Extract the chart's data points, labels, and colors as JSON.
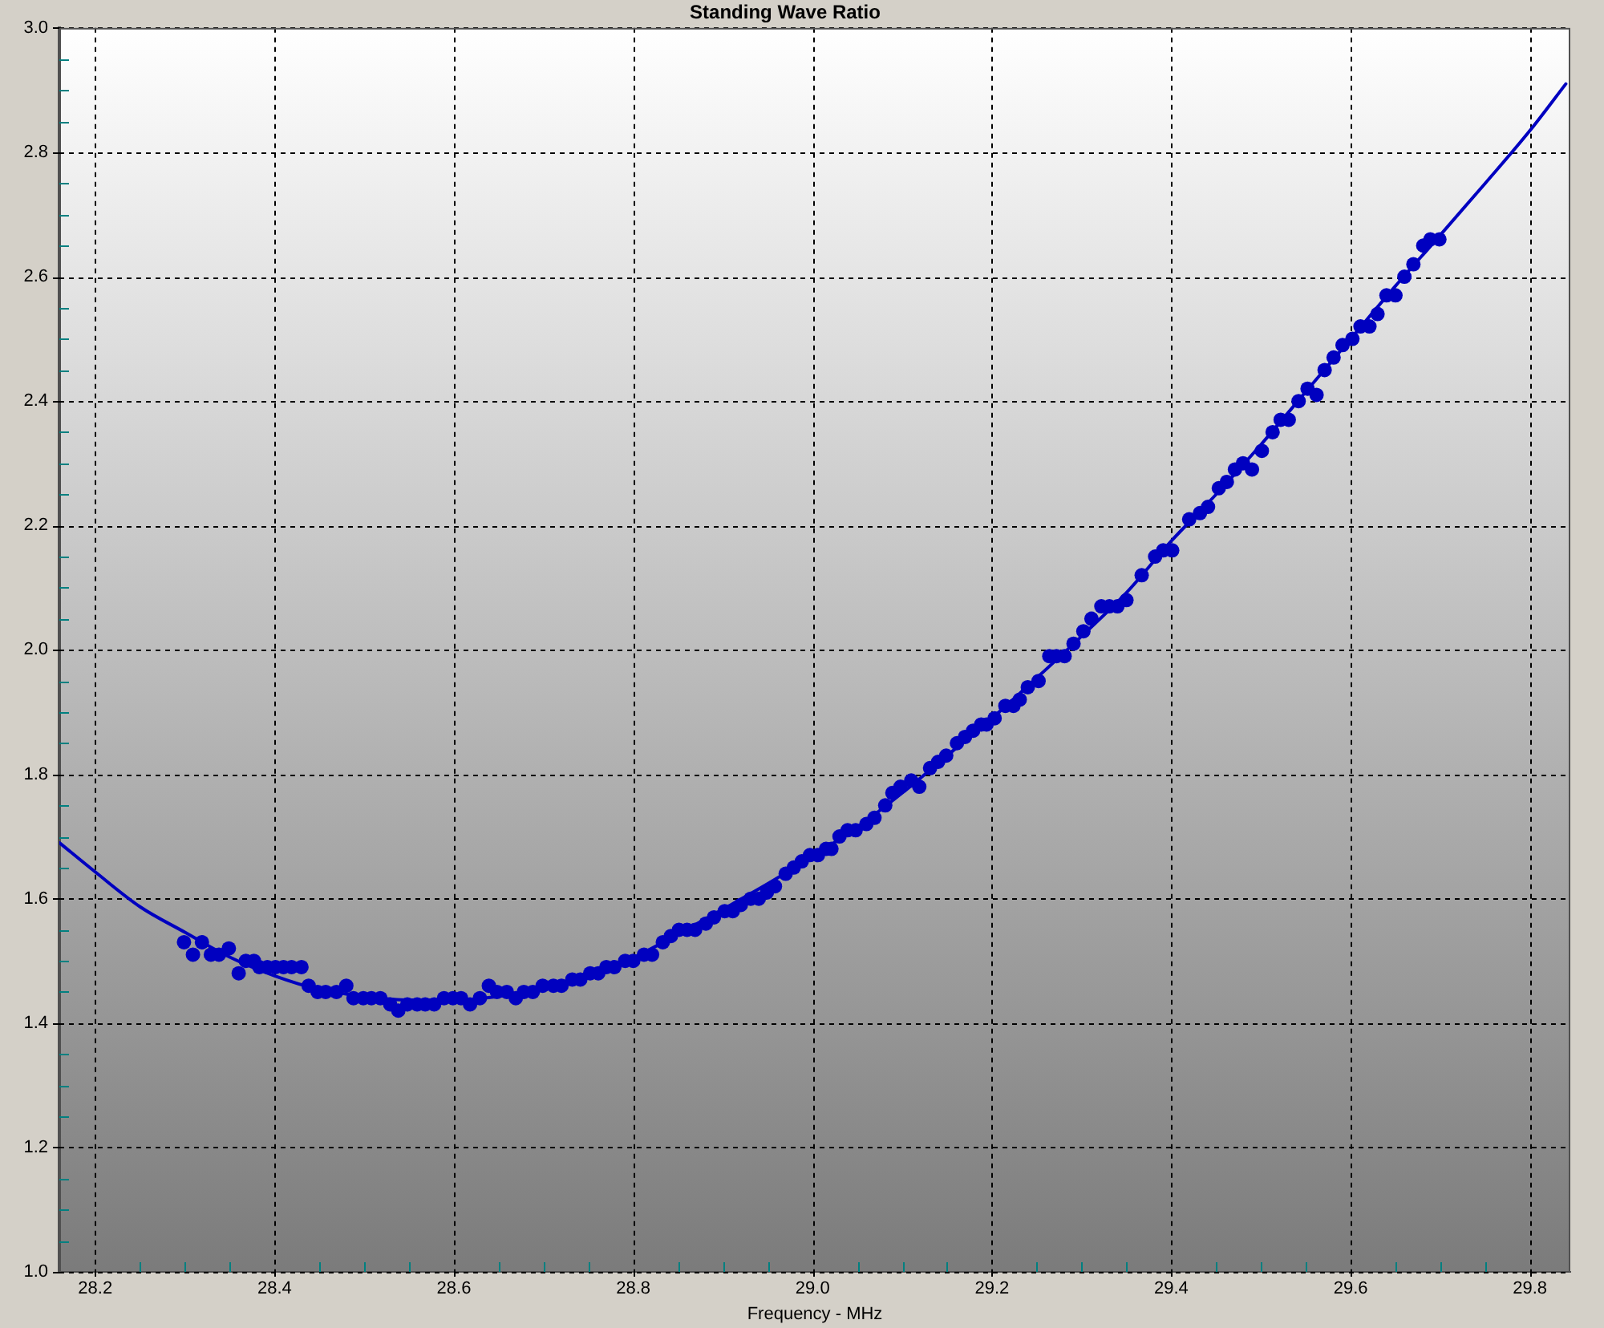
{
  "chart_data": {
    "type": "scatter",
    "title": "Standing Wave Ratio",
    "xlabel": "Frequency - MHz",
    "xlim": [
      28.16,
      29.845
    ],
    "ylim": [
      1,
      3
    ],
    "xticks": [
      28.2,
      {
        "value": 28.25,
        "label": null
      },
      {
        "value": 28.3,
        "label": null
      },
      {
        "value": 28.35,
        "label": null
      },
      28.4,
      {
        "value": 28.45,
        "label": null
      },
      {
        "value": 28.5,
        "label": null
      },
      {
        "value": 28.55,
        "label": null
      },
      28.6,
      {
        "value": 28.65,
        "label": null
      },
      {
        "value": 28.7,
        "label": null
      },
      {
        "value": 28.75,
        "label": null
      },
      28.8,
      {
        "value": 28.85,
        "label": null
      },
      {
        "value": 28.9,
        "label": null
      },
      {
        "value": 28.95,
        "label": null
      },
      {
        "value": 29,
        "label": "29.0"
      },
      {
        "value": 29.05,
        "label": null
      },
      {
        "value": 29.1,
        "label": null
      },
      {
        "value": 29.15,
        "label": null
      },
      29.2,
      {
        "value": 29.25,
        "label": null
      },
      {
        "value": 29.3,
        "label": null
      },
      {
        "value": 29.35,
        "label": null
      },
      29.4,
      {
        "value": 29.45,
        "label": null
      },
      {
        "value": 29.5,
        "label": null
      },
      {
        "value": 29.55,
        "label": null
      },
      29.6,
      {
        "value": 29.65,
        "label": null
      },
      {
        "value": 29.7,
        "label": null
      },
      {
        "value": 29.75,
        "label": null
      },
      29.8
    ],
    "yticks": [
      {
        "value": 1,
        "label": "1.0"
      },
      {
        "value": 1.05,
        "label": null
      },
      {
        "value": 1.1,
        "label": null
      },
      {
        "value": 1.15,
        "label": null
      },
      1.2,
      {
        "value": 1.25,
        "label": null
      },
      {
        "value": 1.3,
        "label": null
      },
      {
        "value": 1.35,
        "label": null
      },
      1.4,
      {
        "value": 1.45,
        "label": null
      },
      {
        "value": 1.5,
        "label": null
      },
      {
        "value": 1.55,
        "label": null
      },
      1.6,
      {
        "value": 1.65,
        "label": null
      },
      {
        "value": 1.7,
        "label": null
      },
      {
        "value": 1.75,
        "label": null
      },
      1.8,
      {
        "value": 1.85,
        "label": null
      },
      {
        "value": 1.9,
        "label": null
      },
      {
        "value": 1.95,
        "label": null
      },
      {
        "value": 2,
        "label": "2.0"
      },
      {
        "value": 2.05,
        "label": null
      },
      {
        "value": 2.1,
        "label": null
      },
      {
        "value": 2.15,
        "label": null
      },
      2.2,
      {
        "value": 2.25,
        "label": null
      },
      {
        "value": 2.3,
        "label": null
      },
      {
        "value": 2.35,
        "label": null
      },
      2.4,
      {
        "value": 2.45,
        "label": null
      },
      {
        "value": 2.5,
        "label": null
      },
      {
        "value": 2.55,
        "label": null
      },
      2.6,
      {
        "value": 2.65,
        "label": null
      },
      {
        "value": 2.7,
        "label": null
      },
      {
        "value": 2.75,
        "label": null
      },
      2.8,
      {
        "value": 2.85,
        "label": null
      },
      {
        "value": 2.9,
        "label": null
      },
      {
        "value": 2.95,
        "label": null
      },
      {
        "value": 3,
        "label": "3.0"
      }
    ],
    "grid": true,
    "series": [
      {
        "color": "#0000c0",
        "marker": "circle",
        "x": [
          28.299,
          28.309,
          28.319,
          28.329,
          28.338,
          28.349,
          28.36,
          28.368,
          28.377,
          28.383,
          28.392,
          28.401,
          28.41,
          28.419,
          28.43,
          28.438,
          28.448,
          28.457,
          28.469,
          28.48,
          28.488,
          28.499,
          28.508,
          28.518,
          28.529,
          28.538,
          28.548,
          28.559,
          28.568,
          28.578,
          28.589,
          28.599,
          28.608,
          28.618,
          28.629,
          28.639,
          28.648,
          28.659,
          28.669,
          28.678,
          28.688,
          28.699,
          28.711,
          28.72,
          28.732,
          28.741,
          28.752,
          28.761,
          28.77,
          28.779,
          28.791,
          28.8,
          28.812,
          28.821,
          28.833,
          28.842,
          28.851,
          28.86,
          28.869,
          28.881,
          28.89,
          28.902,
          28.911,
          28.92,
          28.931,
          28.94,
          28.949,
          28.958,
          28.97,
          28.979,
          28.988,
          28.997,
          29.006,
          29.015,
          29.021,
          29.03,
          29.039,
          29.048,
          29.06,
          29.069,
          29.081,
          29.089,
          29.098,
          29.11,
          29.119,
          29.131,
          29.14,
          29.149,
          29.161,
          29.17,
          29.179,
          29.188,
          29.194,
          29.203,
          29.215,
          29.224,
          29.231,
          29.24,
          29.252,
          29.264,
          29.272,
          29.281,
          29.291,
          29.302,
          29.311,
          29.322,
          29.331,
          29.34,
          29.35,
          29.367,
          29.382,
          29.391,
          29.401,
          29.42,
          29.432,
          29.441,
          29.453,
          29.462,
          29.471,
          29.48,
          29.49,
          29.501,
          29.513,
          29.522,
          29.531,
          29.542,
          29.552,
          29.562,
          29.571,
          29.581,
          29.591,
          29.602,
          29.611,
          29.621,
          29.63,
          29.64,
          29.65,
          29.66,
          29.67,
          29.681,
          29.689,
          29.699
        ],
        "values": [
          1.53,
          1.51,
          1.53,
          1.51,
          1.51,
          1.52,
          1.48,
          1.5,
          1.5,
          1.49,
          1.49,
          1.49,
          1.49,
          1.49,
          1.49,
          1.46,
          1.45,
          1.45,
          1.45,
          1.46,
          1.44,
          1.44,
          1.44,
          1.44,
          1.43,
          1.42,
          1.43,
          1.43,
          1.43,
          1.43,
          1.44,
          1.44,
          1.44,
          1.43,
          1.44,
          1.46,
          1.45,
          1.45,
          1.44,
          1.45,
          1.45,
          1.46,
          1.46,
          1.46,
          1.47,
          1.47,
          1.48,
          1.48,
          1.49,
          1.49,
          1.5,
          1.5,
          1.51,
          1.51,
          1.53,
          1.54,
          1.55,
          1.55,
          1.55,
          1.56,
          1.57,
          1.58,
          1.58,
          1.59,
          1.6,
          1.6,
          1.61,
          1.62,
          1.64,
          1.65,
          1.66,
          1.67,
          1.67,
          1.68,
          1.68,
          1.7,
          1.71,
          1.71,
          1.72,
          1.73,
          1.75,
          1.77,
          1.78,
          1.79,
          1.78,
          1.81,
          1.82,
          1.83,
          1.85,
          1.86,
          1.87,
          1.88,
          1.88,
          1.89,
          1.91,
          1.91,
          1.92,
          1.94,
          1.95,
          1.99,
          1.99,
          1.99,
          2.01,
          2.03,
          2.05,
          2.07,
          2.07,
          2.07,
          2.08,
          2.12,
          2.15,
          2.16,
          2.16,
          2.21,
          2.22,
          2.23,
          2.26,
          2.27,
          2.29,
          2.3,
          2.29,
          2.32,
          2.35,
          2.37,
          2.37,
          2.4,
          2.42,
          2.41,
          2.45,
          2.47,
          2.49,
          2.5,
          2.52,
          2.52,
          2.54,
          2.57,
          2.57,
          2.6,
          2.62,
          2.65,
          2.66,
          2.66
        ]
      },
      {
        "type": "line",
        "color": "#0000c0",
        "marker": "none",
        "x": [
          28.16,
          28.2,
          28.25,
          28.3,
          28.35,
          28.4,
          28.45,
          28.5,
          28.55,
          28.6,
          28.65,
          28.7,
          28.75,
          28.8,
          28.85,
          28.9,
          28.95,
          29,
          29.05,
          29.1,
          29.15,
          29.2,
          29.25,
          29.3,
          29.35,
          29.4,
          29.45,
          29.5,
          29.55,
          29.6,
          29.65,
          29.7,
          29.75,
          29.8,
          29.84
        ],
        "values": [
          1.69,
          1.643,
          1.587,
          1.546,
          1.506,
          1.476,
          1.454,
          1.443,
          1.437,
          1.437,
          1.443,
          1.456,
          1.476,
          1.505,
          1.543,
          1.583,
          1.624,
          1.668,
          1.715,
          1.77,
          1.83,
          1.89,
          1.955,
          2.022,
          2.092,
          2.175,
          2.25,
          2.33,
          2.415,
          2.5,
          2.585,
          2.667,
          2.75,
          2.835,
          2.91
        ]
      }
    ]
  }
}
